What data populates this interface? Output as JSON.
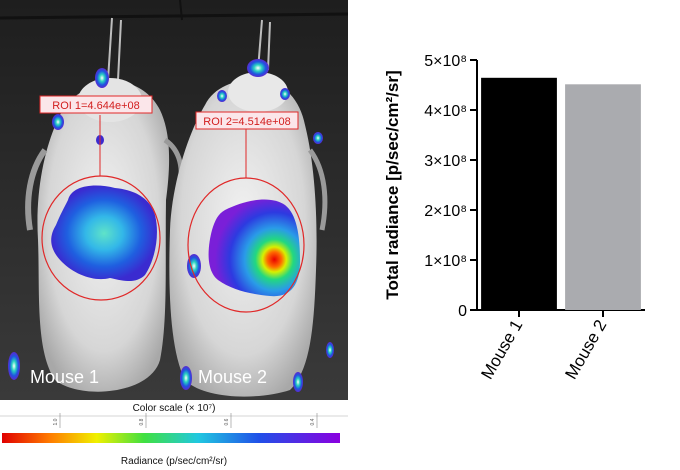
{
  "image_labels": {
    "mouse_1": "Mouse 1",
    "mouse_2": "Mouse 2",
    "roi_1": "ROI 1=4.644e+08",
    "roi_2": "ROI 2=4.514e+08"
  },
  "color_scale": {
    "title": "Color scale (× 10⁷)",
    "ticks": [
      "1.0",
      "0.8",
      "0.6",
      "0.4"
    ],
    "label": "Radiance (p/sec/cm²/sr)"
  },
  "chart_data": {
    "type": "bar",
    "categories": [
      "Mouse 1",
      "Mouse 2"
    ],
    "values": [
      464400000,
      451400000
    ],
    "colors": [
      "#000000",
      "#aaabaf"
    ],
    "title": "",
    "xlabel": "",
    "ylabel": "Total radiance [p/sec/cm²/sr]",
    "ylim": [
      0,
      500000000
    ],
    "yticks": [
      {
        "value": 0,
        "label": "0"
      },
      {
        "value": 100000000,
        "label": "1×10⁸"
      },
      {
        "value": 200000000,
        "label": "2×10⁸"
      },
      {
        "value": 300000000,
        "label": "3×10⁸"
      },
      {
        "value": 400000000,
        "label": "4×10⁸"
      },
      {
        "value": 500000000,
        "label": "5×10⁸"
      }
    ],
    "grid": false,
    "legend": "none"
  }
}
